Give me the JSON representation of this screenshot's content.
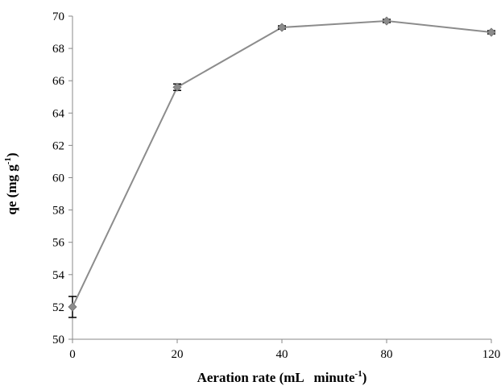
{
  "chart_data": {
    "type": "line",
    "title": "",
    "xlabel": {
      "main": "Aeration rate (mL   minute",
      "sup": "-1",
      "end": ")"
    },
    "ylabel": {
      "main": "qe (mg g",
      "sup": "-1",
      "end": ")"
    },
    "categories": [
      "0",
      "20",
      "40",
      "80",
      "120"
    ],
    "ylim": [
      50,
      70
    ],
    "yticks": [
      "50",
      "52",
      "54",
      "56",
      "58",
      "60",
      "62",
      "64",
      "66",
      "68",
      "70"
    ],
    "grid": false,
    "legend": "none",
    "series": [
      {
        "values": [
          52.0,
          65.6,
          69.3,
          69.7,
          69.0
        ],
        "errors": [
          0.65,
          0.2,
          0.1,
          0.1,
          0.1
        ]
      }
    ],
    "colors": {
      "line": "#8c8c8c",
      "marker": "#8c8c8c",
      "errorbar": "#000000",
      "axis": "#888888"
    }
  }
}
